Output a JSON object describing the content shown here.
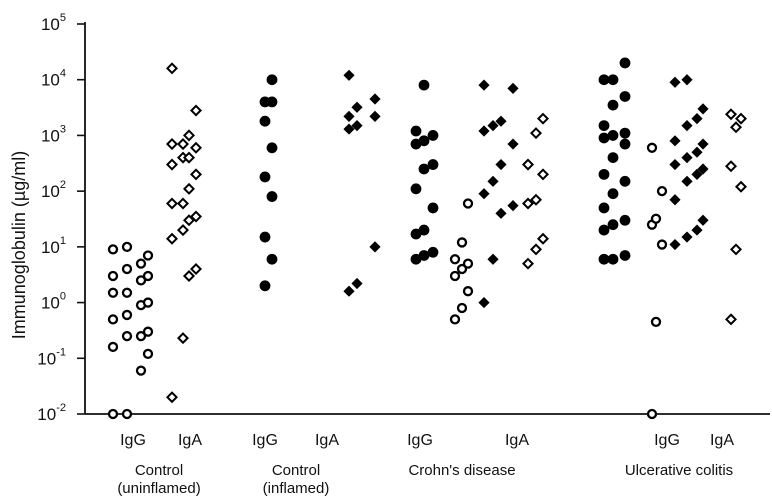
{
  "chart_data": {
    "type": "scatter",
    "y_scale": "log",
    "ylim": [
      0.01,
      100000
    ],
    "ylabel": "Immunoglobulin (µg/ml)",
    "y_tick_labels": [
      {
        "base": "10",
        "exp": "-2",
        "value": 0.01
      },
      {
        "base": "10",
        "exp": "-1",
        "value": 0.1
      },
      {
        "base": "10",
        "exp": "0",
        "value": 1
      },
      {
        "base": "10",
        "exp": "1",
        "value": 10
      },
      {
        "base": "10",
        "exp": "2",
        "value": 100
      },
      {
        "base": "10",
        "exp": "3",
        "value": 1000
      },
      {
        "base": "10",
        "exp": "4",
        "value": 10000
      },
      {
        "base": "10",
        "exp": "5",
        "value": 100000
      }
    ],
    "groups": [
      {
        "line1": "Control",
        "line2": "(uninflamed)"
      },
      {
        "line1": "Control",
        "line2": "(inflamed)"
      },
      {
        "line1": "Crohn's disease",
        "line2": ""
      },
      {
        "line1": "Ulcerative colitis",
        "line2": ""
      }
    ],
    "subgroup_labels": [
      "IgG",
      "IgA",
      "IgG",
      "IgA",
      "IgG",
      "IgA",
      "IgG",
      "IgA"
    ],
    "grid": false,
    "series": [
      {
        "marker": "open-circle",
        "group": 0,
        "values": [
          0.01,
          0.01,
          0.06,
          0.12,
          0.16,
          0.25,
          0.25,
          0.3,
          0.5,
          0.6,
          0.9,
          1.0,
          1.5,
          1.5,
          2.5,
          3.0,
          3.0,
          4.0,
          5.0,
          7.0,
          9.0,
          10.0
        ]
      },
      {
        "marker": "open-diamond",
        "group": 0,
        "values": [
          0.02,
          0.23,
          3.0,
          4.0,
          14.0,
          20.0,
          30.0,
          35.0,
          60.0,
          60.0,
          110.0,
          200.0,
          300.0,
          400.0,
          400.0,
          600.0,
          700.0,
          700.0,
          1000.0,
          2800.0,
          16000.0
        ]
      },
      {
        "marker": "filled-circle",
        "group": 1,
        "values": [
          2.0,
          6.0,
          15.0,
          80.0,
          180.0,
          600.0,
          1800.0,
          4000.0,
          4000.0,
          10000.0
        ]
      },
      {
        "marker": "filled-diamond",
        "group": 1,
        "values": [
          1.6,
          2.2,
          10.0,
          1300.0,
          1500.0,
          2200.0,
          2200.0,
          3200.0,
          4500.0,
          12000.0
        ]
      },
      {
        "marker": "filled-circle",
        "group": 2,
        "values": [
          6.0,
          7.0,
          8.0,
          17.0,
          20.0,
          50.0,
          110.0,
          250.0,
          300.0,
          700.0,
          800.0,
          1000.0,
          1200.0,
          8000.0
        ]
      },
      {
        "marker": "open-circle",
        "group": 2,
        "values": [
          0.5,
          0.8,
          1.6,
          3.0,
          4.0,
          5.0,
          6.0,
          12.0,
          60.0
        ]
      },
      {
        "marker": "filled-diamond",
        "group": 2,
        "values": [
          1.0,
          6.0,
          40.0,
          55.0,
          90.0,
          150.0,
          300.0,
          700.0,
          1200.0,
          1500.0,
          1800.0,
          7000.0,
          8000.0
        ]
      },
      {
        "marker": "open-diamond",
        "group": 2,
        "values": [
          5.0,
          9.0,
          14.0,
          60.0,
          70.0,
          200.0,
          300.0,
          1100.0,
          2000.0
        ]
      },
      {
        "marker": "filled-circle",
        "group": 3,
        "values": [
          6.0,
          6.0,
          7.0,
          20.0,
          25.0,
          30.0,
          50.0,
          90.0,
          150.0,
          200.0,
          400.0,
          700.0,
          900.0,
          1000.0,
          1100.0,
          1500.0,
          3500.0,
          5000.0,
          10000.0,
          10000.0,
          20000.0
        ]
      },
      {
        "marker": "open-circle",
        "group": 3,
        "values": [
          0.01,
          0.45,
          11.0,
          25.0,
          32.0,
          100.0,
          600.0
        ]
      },
      {
        "marker": "filled-diamond",
        "group": 3,
        "values": [
          11.0,
          15.0,
          20.0,
          30.0,
          70.0,
          150.0,
          200.0,
          250.0,
          300.0,
          400.0,
          500.0,
          700.0,
          800.0,
          1500.0,
          2000.0,
          3000.0,
          9000.0,
          10000.0
        ]
      },
      {
        "marker": "open-diamond",
        "group": 3,
        "values": [
          0.5,
          9.0,
          120.0,
          280.0,
          1400.0,
          2000.0,
          2400.0
        ]
      }
    ]
  }
}
